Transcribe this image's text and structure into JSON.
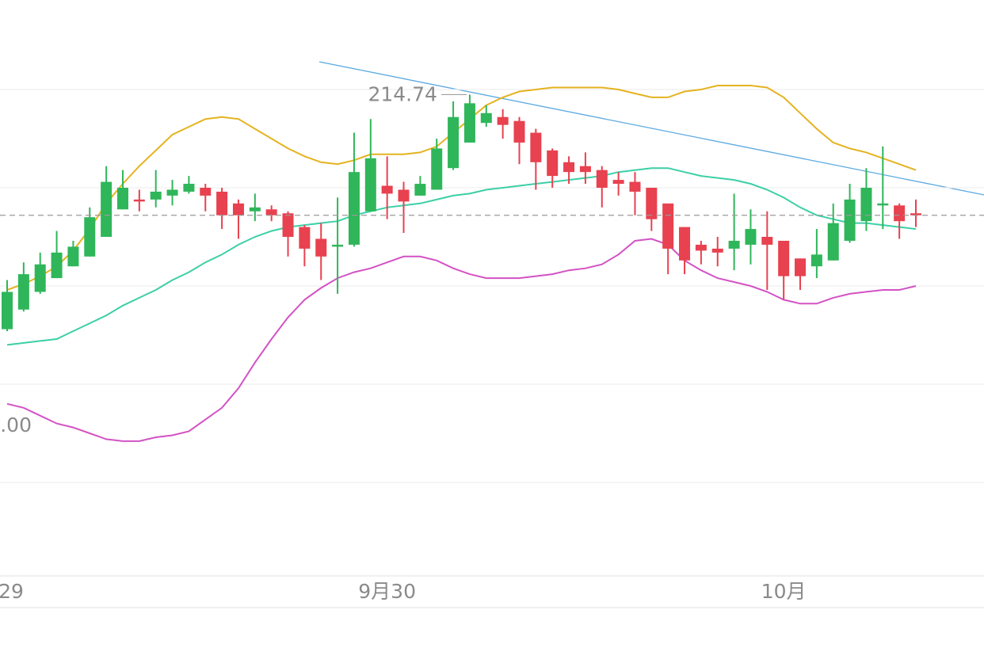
{
  "chart_data": {
    "type": "candlestick",
    "categories": [
      "29",
      null,
      null,
      null,
      null,
      null,
      null,
      null,
      null,
      null,
      null,
      null,
      null,
      null,
      null,
      null,
      null,
      null,
      null,
      null,
      null,
      null,
      null,
      "9月30",
      null,
      null,
      null,
      null,
      null,
      null,
      null,
      null,
      null,
      null,
      null,
      null,
      null,
      null,
      null,
      null,
      null,
      null,
      null,
      null,
      null,
      null,
      null,
      "10月",
      null,
      null,
      null,
      null,
      null,
      null,
      null,
      null
    ],
    "open": [
      202.8,
      203.8,
      204.7,
      205.4,
      206.0,
      206.5,
      207.5,
      208.9,
      209.4,
      209.4,
      209.6,
      209.8,
      210.0,
      209.8,
      209.2,
      208.8,
      208.9,
      208.7,
      208.0,
      207.4,
      207.0,
      207.1,
      208.8,
      210.1,
      209.9,
      209.6,
      209.9,
      211.0,
      212.3,
      213.3,
      213.6,
      213.4,
      212.8,
      211.9,
      211.3,
      211.1,
      210.9,
      210.4,
      210.3,
      210.0,
      209.2,
      208.0,
      207.1,
      206.9,
      206.9,
      207.1,
      207.5,
      207.3,
      206.4,
      206.0,
      206.3,
      207.3,
      208.3,
      209.1,
      209.1,
      208.7
    ],
    "high": [
      205.3,
      206.2,
      206.7,
      207.8,
      207.3,
      209.0,
      211.1,
      210.9,
      209.9,
      210.9,
      210.4,
      210.6,
      210.2,
      210.0,
      209.4,
      209.7,
      209.1,
      208.8,
      208.1,
      208.2,
      209.5,
      212.8,
      213.5,
      211.6,
      210.3,
      210.6,
      212.5,
      214.4,
      214.74,
      214.2,
      214.0,
      213.6,
      213.0,
      212.0,
      211.6,
      211.8,
      211.1,
      210.8,
      210.8,
      210.0,
      209.2,
      208.0,
      207.3,
      207.5,
      209.7,
      208.9,
      208.8,
      207.3,
      206.4,
      207.9,
      209.2,
      210.2,
      211.0,
      212.1,
      209.2,
      209.4
    ],
    "low": [
      202.7,
      203.7,
      204.6,
      205.4,
      206.0,
      206.5,
      207.5,
      208.9,
      208.8,
      209.0,
      209.1,
      209.7,
      208.8,
      207.9,
      207.4,
      208.3,
      208.3,
      206.5,
      206.0,
      205.3,
      204.6,
      207.0,
      208.8,
      208.4,
      207.7,
      209.6,
      209.9,
      210.9,
      212.3,
      213.1,
      212.5,
      211.2,
      209.9,
      210.0,
      210.2,
      210.2,
      209.0,
      209.6,
      208.6,
      207.8,
      205.6,
      205.6,
      206.1,
      206.0,
      205.8,
      206.1,
      204.8,
      204.3,
      204.8,
      205.4,
      206.3,
      207.2,
      207.8,
      207.9,
      207.4,
      208.0
    ],
    "close": [
      204.7,
      205.6,
      206.1,
      206.7,
      207.0,
      208.5,
      210.3,
      210.0,
      209.3,
      209.8,
      209.9,
      210.2,
      209.6,
      208.6,
      208.6,
      209.0,
      208.6,
      207.5,
      206.9,
      206.5,
      207.1,
      210.8,
      211.5,
      209.7,
      209.3,
      210.2,
      212.0,
      213.6,
      214.3,
      213.8,
      213.2,
      212.3,
      211.3,
      210.6,
      210.8,
      210.8,
      210.0,
      210.2,
      209.8,
      208.4,
      206.9,
      206.3,
      206.8,
      206.7,
      207.3,
      207.9,
      207.1,
      205.5,
      205.5,
      206.6,
      208.2,
      209.4,
      210.0,
      209.2,
      208.3,
      208.6
    ],
    "up_color": "#2fb65a",
    "down_color": "#e8414f",
    "lines": [
      {
        "color": "#e5b320",
        "values": [
          204.8,
          205.1,
          205.5,
          206.0,
          206.8,
          207.9,
          209.2,
          210.2,
          211.1,
          211.9,
          212.7,
          213.1,
          213.5,
          213.6,
          213.5,
          213.0,
          212.5,
          212.0,
          211.6,
          211.3,
          211.2,
          211.4,
          211.7,
          211.7,
          211.7,
          211.8,
          212.1,
          212.8,
          213.5,
          214.2,
          214.6,
          214.9,
          215.0,
          215.1,
          215.1,
          215.1,
          215.1,
          215.0,
          214.8,
          214.6,
          214.6,
          214.9,
          215.0,
          215.2,
          215.2,
          215.2,
          215.1,
          214.6,
          213.8,
          213.0,
          212.3,
          212.0,
          211.8,
          211.5,
          211.2,
          210.9
        ]
      },
      {
        "color": "#3ccfa6",
        "values": [
          202.0,
          202.1,
          202.2,
          202.3,
          202.7,
          203.1,
          203.5,
          204.0,
          204.4,
          204.8,
          205.3,
          205.7,
          206.2,
          206.6,
          207.1,
          207.5,
          207.8,
          208.0,
          208.1,
          208.2,
          208.3,
          208.6,
          208.8,
          209.0,
          209.1,
          209.2,
          209.4,
          209.6,
          209.7,
          209.9,
          210.0,
          210.1,
          210.2,
          210.3,
          210.4,
          210.5,
          210.6,
          210.8,
          210.9,
          211.0,
          211.0,
          210.8,
          210.6,
          210.5,
          210.4,
          210.2,
          209.9,
          209.5,
          209.0,
          208.6,
          208.4,
          208.2,
          208.2,
          208.1,
          208.0,
          207.9
        ]
      },
      {
        "color": "#d352c4",
        "values": [
          199.0,
          198.8,
          198.4,
          198.0,
          197.8,
          197.5,
          197.2,
          197.1,
          197.1,
          197.3,
          197.4,
          197.6,
          198.2,
          198.8,
          199.8,
          201.1,
          202.3,
          203.4,
          204.3,
          204.9,
          205.4,
          205.7,
          205.9,
          206.2,
          206.5,
          206.5,
          206.3,
          205.9,
          205.6,
          205.4,
          205.4,
          205.4,
          205.5,
          205.6,
          205.8,
          205.9,
          206.1,
          206.6,
          207.3,
          207.4,
          207.1,
          206.3,
          205.8,
          205.4,
          205.2,
          205.0,
          204.7,
          204.3,
          204.1,
          204.1,
          204.4,
          204.6,
          204.7,
          204.8,
          204.8,
          205.0
        ]
      }
    ],
    "annotation": ".00",
    "ylim": [
      191,
      219
    ],
    "yticks": [
      195,
      200,
      205,
      210,
      215
    ],
    "grid": true
  }
}
